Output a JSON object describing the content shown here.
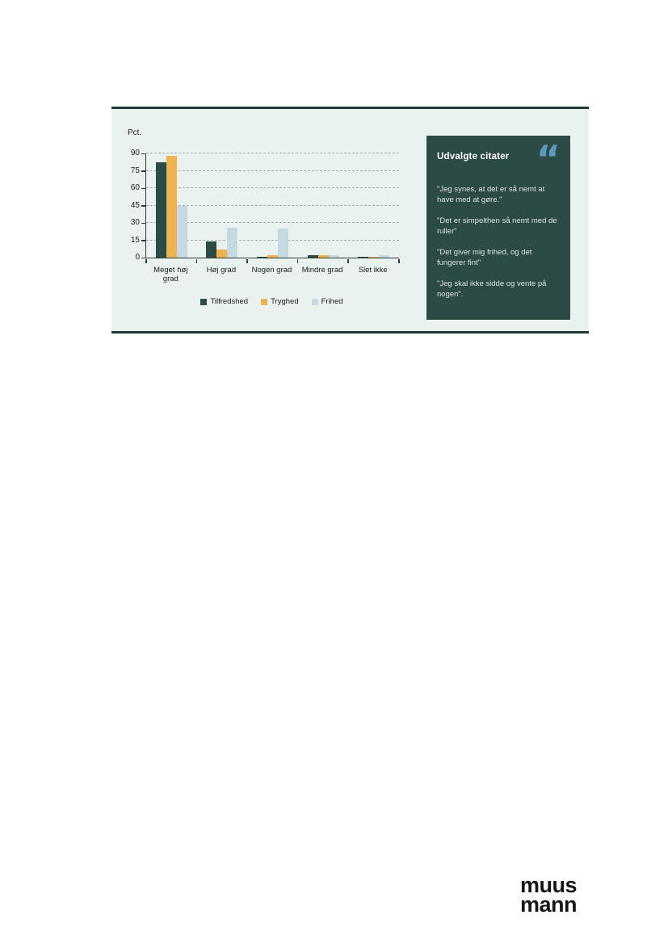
{
  "panel": {
    "background": "#e9f2ee",
    "border_color": "#203a37"
  },
  "chart_data": {
    "type": "bar",
    "title": "",
    "xlabel": "",
    "ylabel": "Pct.",
    "categories": [
      "Meget høj grad",
      "Høj grad",
      "Nogen grad",
      "Mindre grad",
      "Slet ikke"
    ],
    "series": [
      {
        "name": "Tilfredshed",
        "color": "#2c4a46",
        "values": [
          82,
          14,
          1,
          2,
          1
        ]
      },
      {
        "name": "Tryghed",
        "color": "#eeb452",
        "values": [
          88,
          7,
          2,
          2,
          1
        ]
      },
      {
        "name": "Frihed",
        "color": "#c6d8e2",
        "values": [
          45,
          26,
          25,
          2,
          2
        ]
      }
    ],
    "yticks": [
      0,
      15,
      30,
      45,
      60,
      75,
      90
    ],
    "ylim": [
      0,
      90
    ],
    "grid": "horizontal dashed",
    "legend_position": "bottom"
  },
  "quote_box": {
    "title": "Udvalgte citater",
    "icon": "double-quote-icon",
    "icon_glyph": "“",
    "background": "#2c4a46",
    "accent_color": "#5d99bd",
    "quotes": [
      "\"Jeg synes, at det er så nemt at have med at gøre.\"",
      "\"Det er simpelthen så nemt med de ruller\"",
      "\"Det giver mig frihed, og det fungerer fint\"",
      "\"Jeg skal ikke sidde og vente på nogen\"."
    ]
  },
  "logo": {
    "line1": "muus",
    "line2": "mann"
  }
}
